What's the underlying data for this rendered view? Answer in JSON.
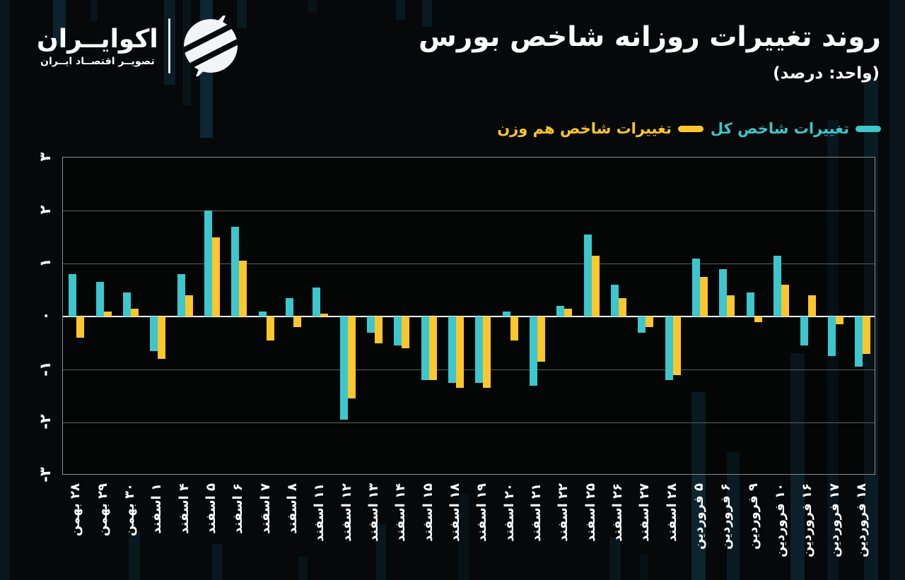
{
  "brand": {
    "wordmark": "اکوایــران",
    "tagline": "تصویــر اقتصــاد ایــران"
  },
  "header": {
    "title": "روند تغییرات روزانه شاخص بورس",
    "subtitle": "(واحد: درصد)"
  },
  "legend": [
    {
      "label": "تغییرات شاخص کل",
      "color": "#3bc7cd"
    },
    {
      "label": "تغییرات شاخص هم وزن",
      "color": "#fdc62b"
    }
  ],
  "chart_data": {
    "type": "bar",
    "title": "روند تغییرات روزانه شاخص بورس",
    "unit_label": "(واحد: درصد)",
    "categories": [
      "۲۸ بهمن",
      "۲۹ بهمن",
      "۳۰ بهمن",
      "۱ اسفند",
      "۴ اسفند",
      "۵ اسفند",
      "۶ اسفند",
      "۷ اسفند",
      "۸ اسفند",
      "۱۱ اسفند",
      "۱۲ اسفند",
      "۱۳ اسفند",
      "۱۴ اسفند",
      "۱۵ اسفند",
      "۱۸ اسفند",
      "۱۹ اسفند",
      "۲۰ اسفند",
      "۲۱ اسفند",
      "۲۲ اسفند",
      "۲۵ اسفند",
      "۲۶ اسفند",
      "۲۷ اسفند",
      "۲۸ اسفند",
      "۵ فروردین",
      "۶ فروردین",
      "۹ فروردین",
      "۱۰ فروردین",
      "۱۶ فروردین",
      "۱۷ فروردین",
      "۱۸ فروردین"
    ],
    "series": [
      {
        "name": "تغییرات شاخص کل",
        "color": "#3bc7cd",
        "values": [
          0.8,
          0.65,
          0.45,
          -0.65,
          0.8,
          2.0,
          1.7,
          0.1,
          0.35,
          0.55,
          -1.95,
          -0.3,
          -0.55,
          -1.2,
          -1.25,
          -1.25,
          0.1,
          -1.3,
          0.2,
          1.55,
          0.6,
          -0.3,
          -1.2,
          1.1,
          0.9,
          0.45,
          1.15,
          -0.55,
          -0.75,
          -0.95
        ]
      },
      {
        "name": "تغییرات شاخص هم وزن",
        "color": "#fdc62b",
        "values": [
          -0.4,
          0.1,
          0.15,
          -0.8,
          0.4,
          1.5,
          1.05,
          -0.45,
          -0.2,
          0.05,
          -1.55,
          -0.5,
          -0.6,
          -1.2,
          -1.35,
          -1.35,
          -0.45,
          -0.85,
          0.15,
          1.15,
          0.35,
          -0.2,
          -1.1,
          0.75,
          0.4,
          -0.1,
          0.6,
          0.4,
          -0.15,
          -0.7
        ]
      }
    ],
    "ylim": [
      -3,
      3
    ],
    "yticks": [
      3,
      2,
      1,
      0,
      -1,
      -2,
      -3
    ],
    "ytick_labels": [
      "۳",
      "۲",
      "۱",
      "۰",
      "-۱",
      "-۲",
      "-۳"
    ],
    "grid": true,
    "legend_position": "top-right",
    "xlabel": "",
    "ylabel": ""
  }
}
